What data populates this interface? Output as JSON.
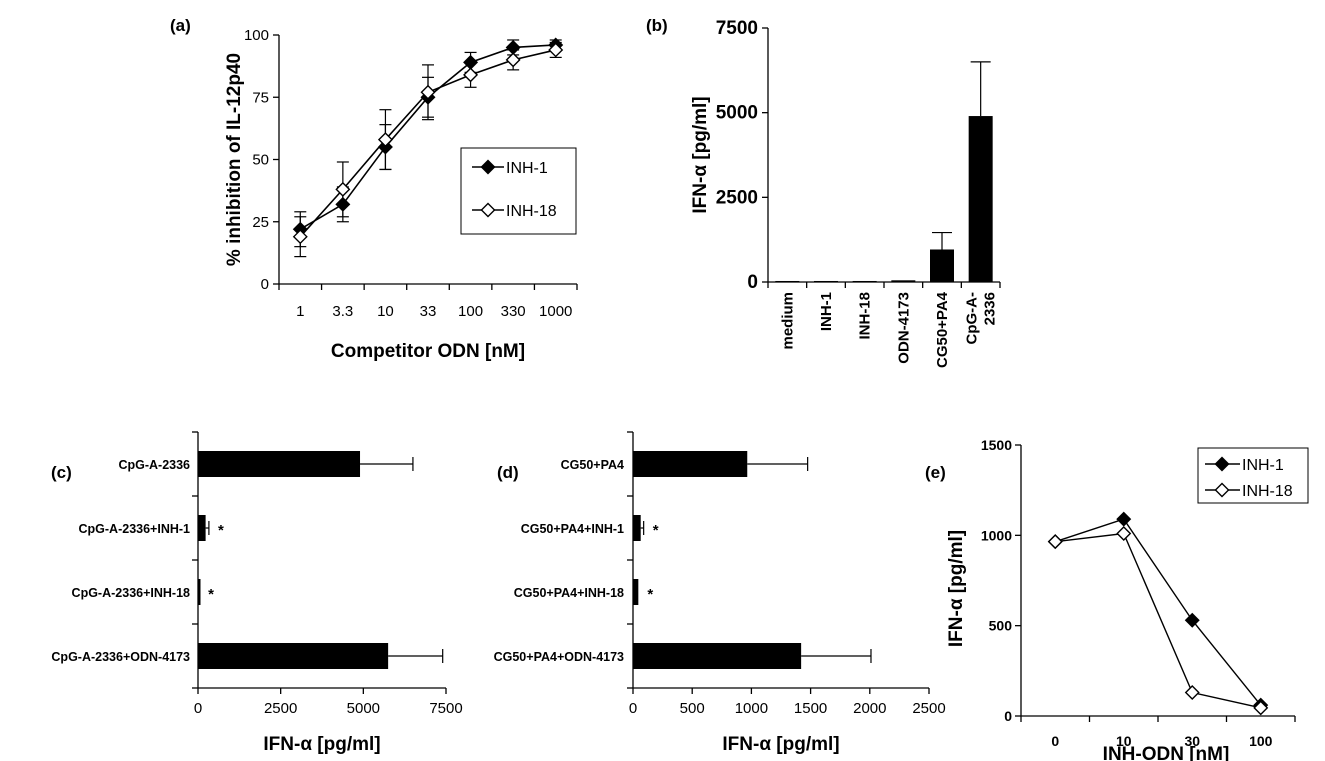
{
  "panels": {
    "a": {
      "label": "(a)"
    },
    "b": {
      "label": "(b)"
    },
    "c": {
      "label": "(c)"
    },
    "d": {
      "label": "(d)"
    },
    "e": {
      "label": "(e)"
    }
  },
  "chart_data": [
    {
      "id": "a",
      "type": "line",
      "title": "",
      "xlabel": "Competitor ODN [nM]",
      "ylabel": "% inhibition of IL-12p40",
      "x": [
        "1",
        "3.3",
        "10",
        "33",
        "100",
        "330",
        "1000"
      ],
      "ylim": [
        0,
        100
      ],
      "yticks": [
        0,
        25,
        50,
        75,
        100
      ],
      "legend_position": "center-right",
      "series": [
        {
          "name": "INH-1",
          "marker": "filled-diamond",
          "values": [
            22,
            32,
            55,
            75,
            89,
            95,
            96
          ],
          "errors": [
            7,
            7,
            9,
            8,
            4,
            3,
            2
          ]
        },
        {
          "name": "INH-18",
          "marker": "open-diamond",
          "values": [
            19,
            38,
            58,
            77,
            84,
            90,
            94
          ],
          "errors": [
            8,
            11,
            12,
            11,
            5,
            4,
            3
          ]
        }
      ]
    },
    {
      "id": "b",
      "type": "bar",
      "title": "",
      "xlabel": "",
      "ylabel": "IFN-α [pg/ml]",
      "categories": [
        "medium",
        "INH-1",
        "INH-18",
        "ODN-4173",
        "CG50+PA4",
        "CpG-A-2336"
      ],
      "category_lines": [
        [
          "medium"
        ],
        [
          "INH-1"
        ],
        [
          "INH-18"
        ],
        [
          "ODN-4173"
        ],
        [
          "CG50+PA4"
        ],
        [
          "CpG-A-",
          "2336"
        ]
      ],
      "values": [
        30,
        30,
        30,
        50,
        960,
        4900
      ],
      "errors": [
        0,
        0,
        0,
        0,
        500,
        1600
      ],
      "ylim": [
        0,
        7500
      ],
      "yticks": [
        0,
        2500,
        5000,
        7500
      ]
    },
    {
      "id": "c",
      "type": "bar",
      "orientation": "horizontal",
      "title": "",
      "xlabel": "IFN-α [pg/ml]",
      "ylabel": "",
      "categories": [
        "CpG-A-2336",
        "CpG-A-2336+INH-1",
        "CpG-A-2336+INH-18",
        "CpG-A-2336+ODN-4173"
      ],
      "values": [
        4900,
        230,
        30,
        5750
      ],
      "errors": [
        1600,
        100,
        0,
        1650
      ],
      "significance": [
        "",
        "*",
        "*",
        ""
      ],
      "xlim": [
        0,
        7500
      ],
      "xticks": [
        0,
        2500,
        5000,
        7500
      ]
    },
    {
      "id": "d",
      "type": "bar",
      "orientation": "horizontal",
      "title": "",
      "xlabel": "IFN-α [pg/ml]",
      "ylabel": "",
      "categories": [
        "CG50+PA4",
        "CG50+PA4+INH-1",
        "CG50+PA4+INH-18",
        "CG50+PA4+ODN-4173"
      ],
      "values": [
        965,
        65,
        45,
        1420
      ],
      "errors": [
        510,
        25,
        0,
        590
      ],
      "significance": [
        "",
        "*",
        "*",
        ""
      ],
      "xlim": [
        0,
        2500
      ],
      "xticks": [
        0,
        500,
        1000,
        1500,
        2000,
        2500
      ]
    },
    {
      "id": "e",
      "type": "line",
      "title": "",
      "xlabel": "INH-ODN [nM]",
      "ylabel": "IFN-α [pg/ml]",
      "x": [
        "0",
        "10",
        "30",
        "100"
      ],
      "ylim": [
        0,
        1500
      ],
      "yticks": [
        0,
        500,
        1000,
        1500
      ],
      "legend_position": "top-right",
      "series": [
        {
          "name": "INH-1",
          "marker": "filled-diamond",
          "values": [
            965,
            1090,
            530,
            60
          ]
        },
        {
          "name": "INH-18",
          "marker": "open-diamond",
          "values": [
            965,
            1010,
            130,
            45
          ]
        }
      ]
    }
  ]
}
